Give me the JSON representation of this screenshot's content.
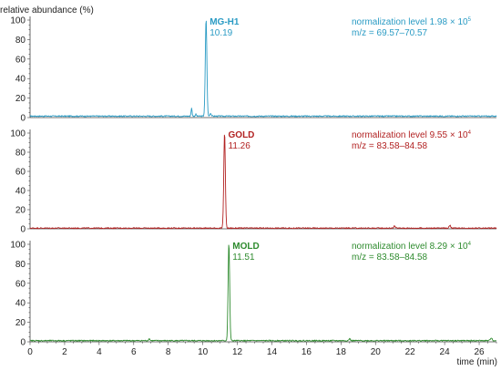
{
  "chart_data": {
    "type": "line",
    "ylabel": "relative abundance (%)",
    "xlabel": "time (min)",
    "xlim": [
      0,
      27
    ],
    "ylim": [
      0,
      100
    ],
    "x_ticks": [
      0,
      2,
      4,
      6,
      8,
      10,
      12,
      14,
      16,
      18,
      20,
      22,
      24,
      26
    ],
    "y_ticks": [
      0,
      20,
      40,
      60,
      80,
      100
    ],
    "grid": false,
    "panels": [
      {
        "color": "#2a9bc4",
        "peak_label": "MG-H1",
        "peak_time": "10.19",
        "norm_text": "normalization level 1.98 × 10",
        "norm_exp": "5",
        "mz_text": "m/z = 69.57–70.57",
        "baseline": 1.5,
        "peaks": [
          {
            "x": 10.19,
            "y": 100,
            "w": 0.045
          },
          {
            "x": 9.35,
            "y": 8,
            "w": 0.03
          },
          {
            "x": 9.6,
            "y": 2,
            "w": 0.03
          },
          {
            "x": 10.45,
            "y": 3,
            "w": 0.04
          }
        ]
      },
      {
        "color": "#b22222",
        "peak_label": "GOLD",
        "peak_time": "11.26",
        "norm_text": "normalization level 9.55 × 10",
        "norm_exp": "4",
        "mz_text": "m/z = 83.58–84.58",
        "baseline": 0.7,
        "peaks": [
          {
            "x": 11.26,
            "y": 100,
            "w": 0.045
          },
          {
            "x": 21.1,
            "y": 2.5,
            "w": 0.04
          },
          {
            "x": 24.3,
            "y": 3,
            "w": 0.05
          }
        ]
      },
      {
        "color": "#2e8b2e",
        "peak_label": "MOLD",
        "peak_time": "11.51",
        "norm_text": "normalization level 8.29 × 10",
        "norm_exp": "4",
        "mz_text": "m/z = 83.58–84.58",
        "baseline": 1.2,
        "peaks": [
          {
            "x": 11.51,
            "y": 100,
            "w": 0.045
          },
          {
            "x": 6.9,
            "y": 2,
            "w": 0.04
          },
          {
            "x": 18.5,
            "y": 2,
            "w": 0.04
          },
          {
            "x": 26.7,
            "y": 3,
            "w": 0.05
          }
        ]
      }
    ]
  }
}
